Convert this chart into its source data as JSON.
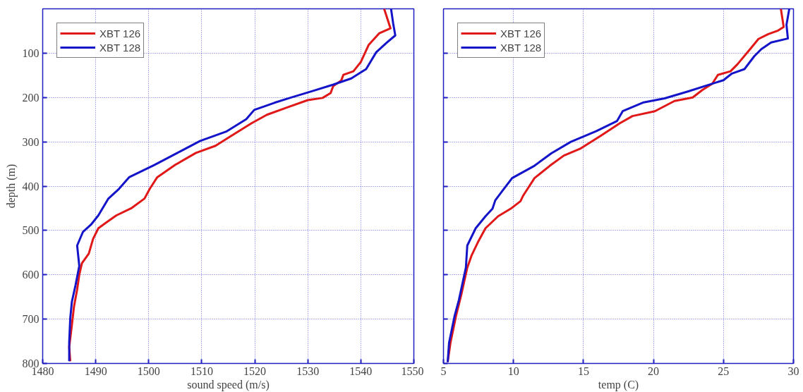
{
  "chart_data": [
    {
      "type": "line",
      "xlabel": "sound speed (m/s)",
      "ylabel": "depth (m)",
      "xlim": [
        1480,
        1550
      ],
      "ylim": [
        800,
        0
      ],
      "xticks": [
        1480,
        1490,
        1500,
        1510,
        1520,
        1530,
        1540,
        1550
      ],
      "yticks": [
        100,
        200,
        300,
        400,
        500,
        600,
        700,
        800
      ],
      "grid": true,
      "legend": "top left",
      "line_style": "solid",
      "marker": "none",
      "series": [
        {
          "name": "XBT 126",
          "color": "#e01818",
          "x": [
            1544.4,
            1545.6,
            1543.5,
            1541.5,
            1540,
            1538.6,
            1536.7,
            1536.3,
            1534.8,
            1534.3,
            1532.8,
            1530,
            1526.2,
            1522.3,
            1519.4,
            1515.5,
            1512.6,
            1508.9,
            1505,
            1501.6,
            1500.2,
            1499.2,
            1496.7,
            1493.9,
            1492,
            1490.5,
            1489.5,
            1488.7,
            1487.4,
            1486.9,
            1486.5,
            1485.9,
            1485.5,
            1485,
            1485.2
          ],
          "values": [
            0,
            44,
            55,
            81,
            120,
            141,
            149,
            162,
            174,
            190,
            201,
            206,
            222,
            239,
            258,
            287,
            309,
            325,
            352,
            380,
            406,
            428,
            450,
            466,
            482,
            495,
            519,
            552,
            574,
            600,
            633,
            672,
            714,
            763,
            795
          ]
        },
        {
          "name": "XBT 128",
          "color": "#1414c8",
          "x": [
            1545.7,
            1546.1,
            1546.5,
            1544.9,
            1542.9,
            1541,
            1538.2,
            1534.8,
            1531,
            1526.6,
            1523.7,
            1519.9,
            1518.4,
            1514.6,
            1509.7,
            1505.4,
            1501.1,
            1496.3,
            1494.4,
            1492.4,
            1490.5,
            1489.1,
            1487.6,
            1486.5,
            1486.9,
            1486.2,
            1485.5,
            1485.2,
            1485,
            1485
          ],
          "values": [
            0,
            33,
            60,
            76,
            98,
            136,
            157,
            171,
            185,
            201,
            212,
            228,
            249,
            277,
            298,
            325,
            352,
            380,
            406,
            428,
            466,
            487,
            503,
            534,
            580,
            623,
            661,
            698,
            753,
            795
          ]
        }
      ]
    },
    {
      "type": "line",
      "xlabel": "temp (C)",
      "xlim": [
        5,
        30
      ],
      "ylim": [
        800,
        0
      ],
      "xticks": [
        5,
        10,
        15,
        20,
        25,
        30
      ],
      "yticks": [
        100,
        200,
        300,
        400,
        500,
        600,
        700,
        800
      ],
      "tick_labels": "x",
      "grid": true,
      "legend": "top left",
      "line_style": "solid",
      "marker": "none",
      "series": [
        {
          "name": "XBT 126",
          "color": "#e01818",
          "x": [
            29.1,
            29.3,
            28.9,
            28.2,
            27.5,
            26.9,
            26,
            25.5,
            24.6,
            24.2,
            23.5,
            22.8,
            21.5,
            20.1,
            18.5,
            17.6,
            16.2,
            14.8,
            13.6,
            12.6,
            11.5,
            10.7,
            10.5,
            9.8,
            8.9,
            8,
            7.5,
            7,
            6.7,
            6.3,
            5.9,
            5.5,
            5.3
          ],
          "values": [
            0,
            41,
            49,
            57,
            68,
            91,
            125,
            141,
            149,
            169,
            183,
            200,
            208,
            231,
            242,
            258,
            287,
            315,
            331,
            354,
            382,
            421,
            434,
            451,
            468,
            495,
            524,
            557,
            584,
            641,
            692,
            753,
            797
          ]
        },
        {
          "name": "XBT 128",
          "color": "#1414c8",
          "x": [
            29.7,
            29.5,
            29.6,
            28.4,
            27.7,
            27.2,
            26.5,
            25.6,
            25,
            23.9,
            22.5,
            20.8,
            19.3,
            17.8,
            17.4,
            15.9,
            14.1,
            12.7,
            11.5,
            9.9,
            9.2,
            8.7,
            8.5,
            8,
            7.3,
            6.7,
            6.6,
            6.1,
            5.8,
            5.4,
            5.3
          ],
          "values": [
            0,
            36,
            67,
            76,
            91,
            107,
            136,
            146,
            161,
            172,
            186,
            202,
            211,
            231,
            253,
            276,
            300,
            326,
            354,
            382,
            411,
            432,
            451,
            468,
            495,
            534,
            584,
            657,
            692,
            753,
            797
          ]
        }
      ]
    }
  ]
}
